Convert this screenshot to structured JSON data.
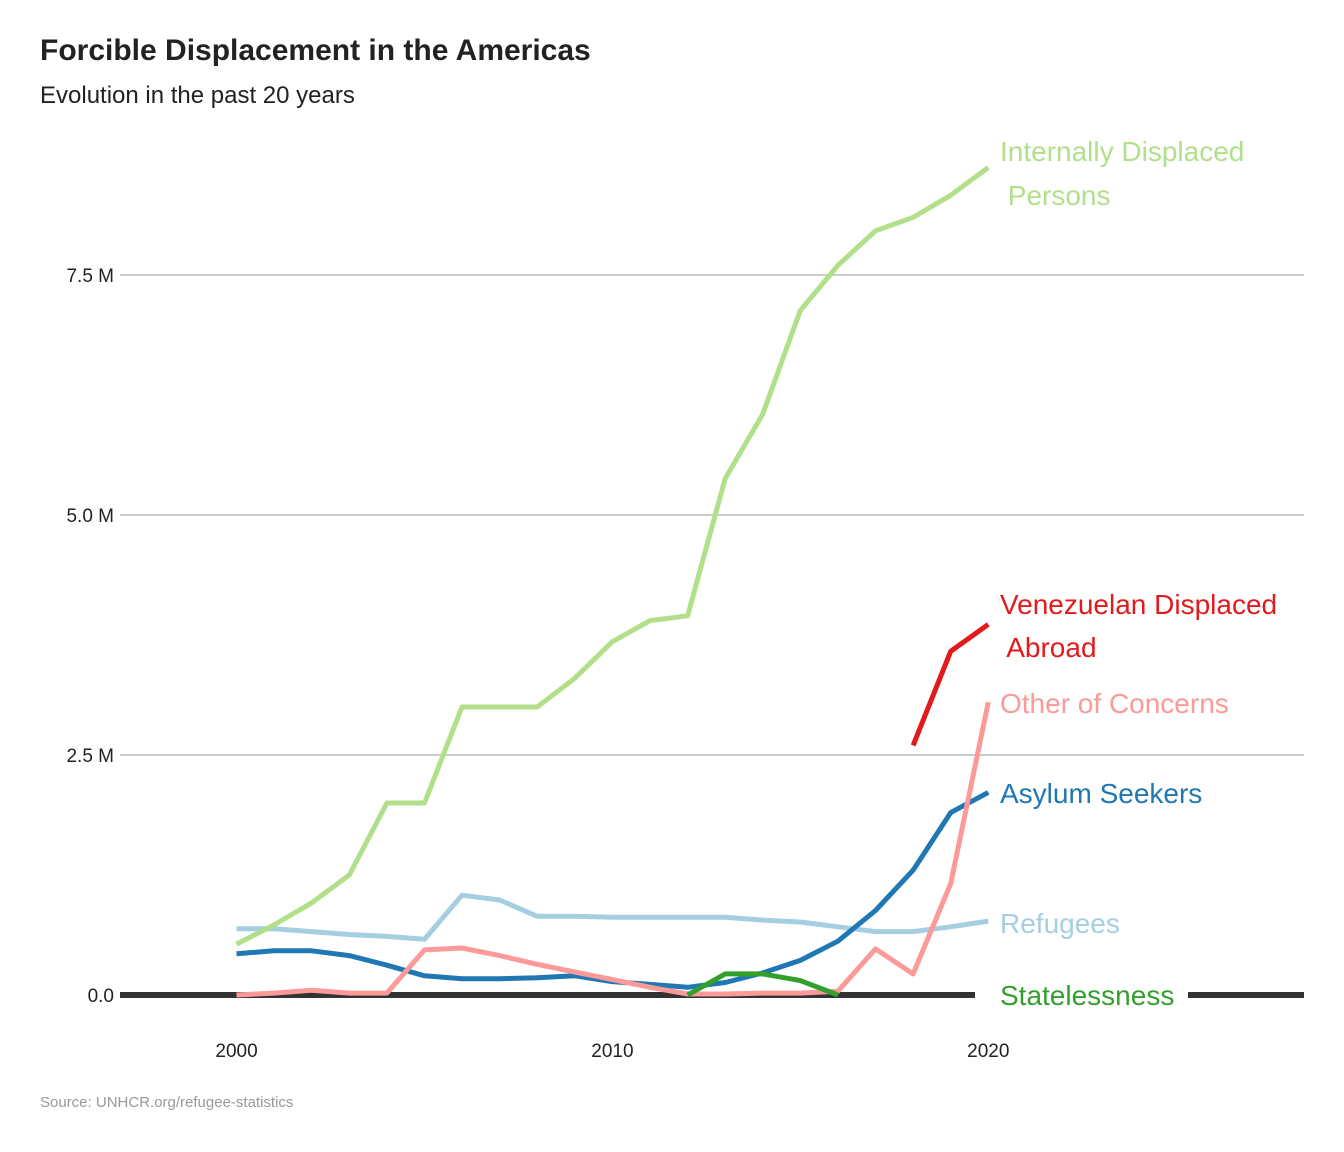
{
  "chart_data": {
    "type": "line",
    "title": "Forcible Displacement in the Americas",
    "subtitle": "Evolution in the past 20 years",
    "source": "Source: UNHCR.org/refugee-statistics",
    "xlabel": "",
    "ylabel": "",
    "xlim": [
      1996.9,
      2028.4
    ],
    "ylim": [
      0,
      7500000
    ],
    "x_ticks": [
      {
        "value": 2000,
        "label": "2000"
      },
      {
        "value": 2010,
        "label": "2010"
      },
      {
        "value": 2020,
        "label": "2020"
      }
    ],
    "y_ticks": [
      {
        "value": 0,
        "label": "0.0"
      },
      {
        "value": 2500000,
        "label": "2.5 M"
      },
      {
        "value": 5000000,
        "label": "5.0 M"
      },
      {
        "value": 7500000,
        "label": "7.5 M"
      }
    ],
    "grid": "horizontal",
    "legend": "direct labels at right end of lines",
    "series": [
      {
        "id": "idp",
        "name": "Internally Displaced Persons",
        "label_lines": [
          "Internally Displaced",
          " Persons"
        ],
        "color": "#b2df8a",
        "x": [
          2000,
          2001,
          2002,
          2003,
          2004,
          2005,
          2006,
          2007,
          2008,
          2009,
          2010,
          2011,
          2012,
          2013,
          2014,
          2015,
          2016,
          2017,
          2018,
          2019,
          2020
        ],
        "values": [
          530000,
          730000,
          960000,
          1250000,
          2000000,
          2000000,
          3000000,
          3000000,
          3000000,
          3300000,
          3680000,
          3900000,
          3950000,
          5380000,
          6050000,
          7130000,
          7600000,
          7960000,
          8100000,
          8330000,
          8620000
        ]
      },
      {
        "id": "venezuelan",
        "name": "Venezuelan Displaced Abroad",
        "label_lines": [
          "Venezuelan Displaced",
          " Abroad"
        ],
        "color": "#e31a1c",
        "x": [
          2018,
          2019,
          2020
        ],
        "values": [
          2600000,
          3580000,
          3860000
        ]
      },
      {
        "id": "other",
        "name": "Other of Concerns",
        "label_lines": [
          "Other of Concerns"
        ],
        "color": "#fb9a99",
        "x": [
          2000,
          2001,
          2002,
          2003,
          2004,
          2005,
          2006,
          2007,
          2008,
          2009,
          2010,
          2011,
          2012,
          2013,
          2014,
          2015,
          2016,
          2017,
          2018,
          2019,
          2020
        ],
        "values": [
          0,
          20000,
          50000,
          20000,
          20000,
          470000,
          490000,
          410000,
          320000,
          240000,
          160000,
          80000,
          10000,
          10000,
          20000,
          20000,
          40000,
          480000,
          220000,
          1160000,
          3050000
        ]
      },
      {
        "id": "asylum",
        "name": "Asylum Seekers",
        "label_lines": [
          "Asylum Seekers"
        ],
        "color": "#1f78b4",
        "x": [
          2000,
          2001,
          2002,
          2003,
          2004,
          2005,
          2006,
          2007,
          2008,
          2009,
          2010,
          2011,
          2012,
          2013,
          2014,
          2015,
          2016,
          2017,
          2018,
          2019,
          2020
        ],
        "values": [
          430000,
          460000,
          460000,
          410000,
          310000,
          200000,
          170000,
          170000,
          180000,
          200000,
          140000,
          110000,
          80000,
          130000,
          230000,
          360000,
          560000,
          880000,
          1300000,
          1900000,
          2110000
        ]
      },
      {
        "id": "refugees",
        "name": "Refugees",
        "label_lines": [
          "Refugees"
        ],
        "color": "#a6cee3",
        "x": [
          2000,
          2001,
          2002,
          2003,
          2004,
          2005,
          2006,
          2007,
          2008,
          2009,
          2010,
          2011,
          2012,
          2013,
          2014,
          2015,
          2016,
          2017,
          2018,
          2019,
          2020
        ],
        "values": [
          690000,
          690000,
          660000,
          630000,
          610000,
          580000,
          1040000,
          990000,
          820000,
          820000,
          810000,
          810000,
          810000,
          810000,
          780000,
          760000,
          710000,
          660000,
          660000,
          710000,
          770000
        ]
      },
      {
        "id": "stateless",
        "name": "Statelessness",
        "label_lines": [
          "Statelessness"
        ],
        "color": "#33a02c",
        "x": [
          2012,
          2013,
          2014,
          2015,
          2016
        ],
        "values": [
          0,
          220000,
          220000,
          150000,
          0
        ]
      }
    ]
  }
}
